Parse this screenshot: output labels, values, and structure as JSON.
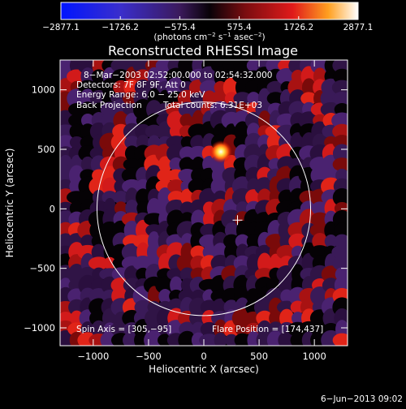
{
  "chart_data": {
    "type": "heatmap",
    "title": "Reconstructed RHESSI Image",
    "xlabel": "Heliocentric X (arcsec)",
    "ylabel": "Heliocentric Y (arcsec)",
    "xlim": [
      -1300,
      1300
    ],
    "ylim": [
      -1150,
      1250
    ],
    "x_ticks": [
      -1000,
      -500,
      0,
      500,
      1000
    ],
    "y_ticks": [
      -1000,
      -500,
      0,
      500,
      1000
    ],
    "x_tick_labels": [
      "−1000",
      "−500",
      "0",
      "500",
      "1000"
    ],
    "y_tick_labels": [
      "−1000",
      "−500",
      "0",
      "500",
      "1000"
    ],
    "colorbar": {
      "range": [
        -2877.1,
        2877.1
      ],
      "ticks": [
        -2877.1,
        -1726.2,
        -575.4,
        575.4,
        1726.2,
        2877.1
      ],
      "tick_labels": [
        "−2877.1",
        "−1726.2",
        "−575.4",
        "575.4",
        "1726.2",
        "2877.1"
      ],
      "unit_main": "(photons cm",
      "unit_exp1": "−2",
      "unit_mid1": " s",
      "unit_exp2": "−1",
      "unit_mid2": " asec",
      "unit_exp3": "−2",
      "unit_end": ")"
    },
    "annotations": {
      "time_range": "8−Mar−2003 02:52:00.000 to 02:54:32.000",
      "detectors": "Detectors: 7F 8F 9F, Att 0",
      "energy": "Energy Range: 6.0 − 25.0 keV",
      "method": "Back Projection",
      "total_counts": "Total counts: 6.31E+03",
      "spin_axis": "Spin Axis = [305,−95]",
      "flare_position": "Flare Position = [174,437]"
    },
    "solar_limb_radius": 966,
    "sun_center": [
      0,
      0
    ],
    "spin_axis_marker": [
      305,
      -95
    ],
    "flare_peak": [
      174,
      437
    ],
    "colors": {
      "background": "#000000",
      "min": "#0000ff",
      "mid": "#000000",
      "max": "#ffffff"
    }
  },
  "footer": {
    "date": "6−Jun−2013 09:02"
  }
}
